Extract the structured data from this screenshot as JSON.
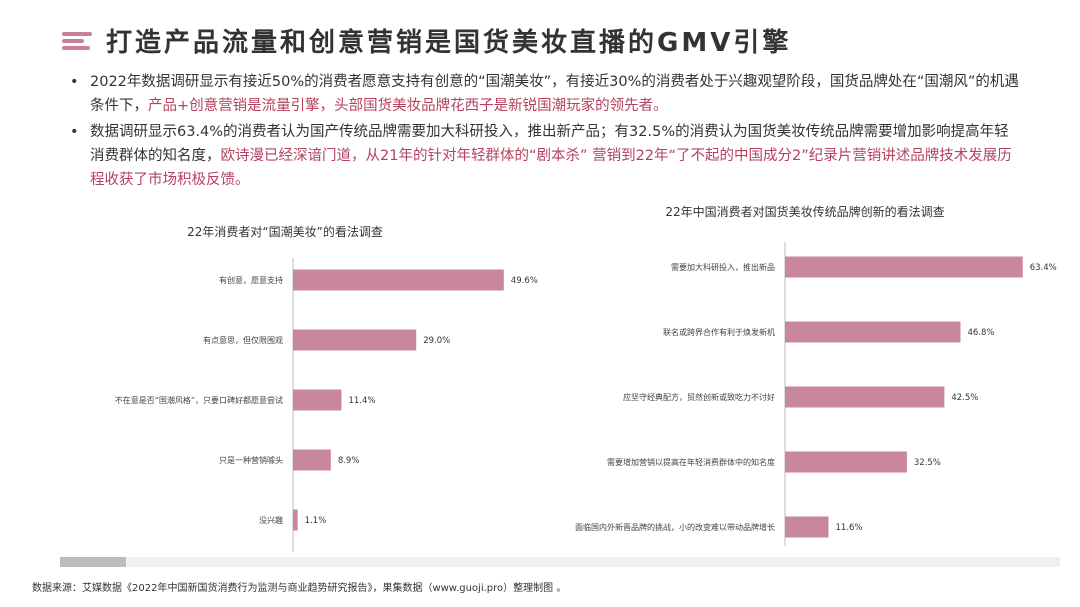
{
  "title": "打造产品流量和创意营销是国货美妆直播的GMV引擎",
  "bullets": [
    {
      "text1": "2022年数据调研显示有接近50%的消费者愿意支持有创意的“国潮美妆”，有接近30%的消费者处于兴趣观望阶段，国货品牌处在“国潮风”的机遇条件下，",
      "highlight": "产品+创意营销是流量引擎，头部国货美妆品牌花西子是新锐国潮玩家的领先者。"
    },
    {
      "text1": "数据调研显示63.4%的消费者认为国产传统品牌需要加大科研投入，推出新产品；有32.5%的消费认为国货美妆传统品牌需要增加影响提高年轻消费群体的知名度，",
      "highlight": "欧诗漫已经深谙门道，从21年的针对年轻群体的“剧本杀” 营销到22年“了不起的中国成分2”纪录片营销讲述品牌技术发展历程收获了市场积极反馈。"
    }
  ],
  "colors": {
    "accent": "#c97f96",
    "bar": "#c9879c",
    "highlight": "#b5415f"
  },
  "chart_data": [
    {
      "type": "bar",
      "orientation": "horizontal",
      "title": "22年消费者对“国潮美妆”的看法调查",
      "categories": [
        "有创意，愿意支持",
        "有点意思，但仅限围观",
        "不在意是否“国潮风格”，只要口碑好都愿意尝试",
        "只是一种营销噱头",
        "没兴趣"
      ],
      "values": [
        49.6,
        29.0,
        11.4,
        8.9,
        1.1
      ],
      "labels": [
        "49.6%",
        "29.0%",
        "11.4%",
        "8.9%",
        "1.1%"
      ],
      "unit": "%",
      "xlim": [
        0,
        60
      ]
    },
    {
      "type": "bar",
      "orientation": "horizontal",
      "title": "22年中国消费者对国货美妆传统品牌创新的看法调查",
      "categories": [
        "需要加大科研投入，推出新品",
        "联名或跨界合作有利于焕发新机",
        "应坚守经典配方，贸然创新或致吃力不讨好",
        "需要增加营销以提高在年轻消费群体中的知名度",
        "面临国内外新晋品牌的挑战，小的改变难以带动品牌增长"
      ],
      "values": [
        63.4,
        46.8,
        42.5,
        32.5,
        11.6
      ],
      "labels": [
        "63.4%",
        "46.8%",
        "42.5%",
        "32.5%",
        "11.6%"
      ],
      "unit": "%",
      "xlim": [
        0,
        70
      ]
    }
  ],
  "source": "数据来源：艾媒数据《2022年中国新国货消费行为监测与商业趋势研究报告》，果集数据（www.guoji.pro）整理制图 。"
}
